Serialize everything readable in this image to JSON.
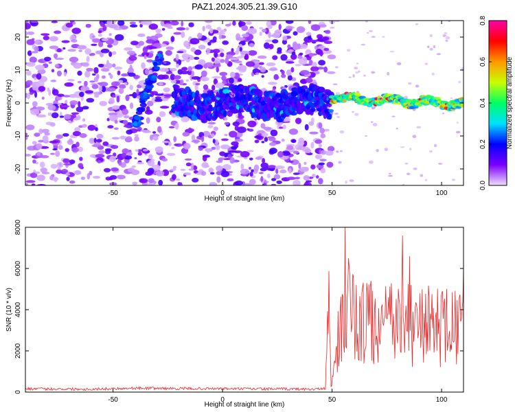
{
  "figure": {
    "title": "PAZ1.2024.305.21.39.G10"
  },
  "chart_data": [
    {
      "type": "heatmap",
      "xlabel": "Height of straight line (km)",
      "ylabel": "Frequency (Hz)",
      "xlim": [
        -90,
        110
      ],
      "ylim": [
        -25,
        25
      ],
      "xticks": [
        -50,
        0,
        50,
        100
      ],
      "yticks": [
        -20,
        -10,
        0,
        10,
        20
      ],
      "colorbar": {
        "label": "Normalized spectral amplitude",
        "range": [
          0.0,
          0.8
        ],
        "ticks": [
          "0.0",
          "0.2",
          "0.4",
          "0.6",
          "0.8"
        ],
        "colors": [
          "#f0e0ff",
          "#7a00ff",
          "#0000ff",
          "#00e0ff",
          "#00ff66",
          "#c8ff00",
          "#ff9900",
          "#ff0000",
          "#ff00aa"
        ]
      },
      "features": {
        "noise_region_x": [
          -90,
          50
        ],
        "carrier_start_km": -22,
        "clean_region_x": [
          50,
          110
        ],
        "clean_region_peak_amplitude": 0.8,
        "secondary_track_points": [
          [
            -40,
            -7
          ],
          [
            -35,
            3
          ],
          [
            -28,
            15
          ]
        ]
      },
      "grid": false
    },
    {
      "type": "line",
      "xlabel": "Height of straight line (km)",
      "ylabel": "SNR (10 * v/v)",
      "xlim": [
        -90,
        110
      ],
      "ylim": [
        0,
        8000
      ],
      "xticks": [
        -50,
        0,
        50,
        100
      ],
      "yticks": [
        0,
        2000,
        4000,
        6000,
        8000
      ],
      "series": [
        {
          "color": "#ee2222",
          "profile": [
            [
              -90,
              150
            ],
            [
              -60,
              130
            ],
            [
              -40,
              180
            ],
            [
              -20,
              160
            ],
            [
              0,
              150
            ],
            [
              20,
              140
            ],
            [
              40,
              130
            ],
            [
              47,
              150
            ],
            [
              48.5,
              5000
            ],
            [
              49.5,
              300
            ],
            [
              50,
              600
            ],
            [
              52,
              1500
            ],
            [
              54,
              3000
            ],
            [
              56,
              4200
            ],
            [
              60,
              3500
            ],
            [
              70,
              3300
            ],
            [
              80,
              3300
            ],
            [
              90,
              3200
            ],
            [
              100,
              3200
            ],
            [
              110,
              3000
            ]
          ],
          "spikes": [
            [
              56,
              8000
            ],
            [
              57.5,
              6500
            ],
            [
              61,
              5200
            ],
            [
              66,
              4800
            ],
            [
              82,
              7600
            ],
            [
              86,
              5200
            ],
            [
              90,
              4800
            ],
            [
              100,
              4800
            ],
            [
              108,
              4600
            ],
            [
              110,
              6000
            ]
          ]
        }
      ],
      "grid": false
    }
  ]
}
